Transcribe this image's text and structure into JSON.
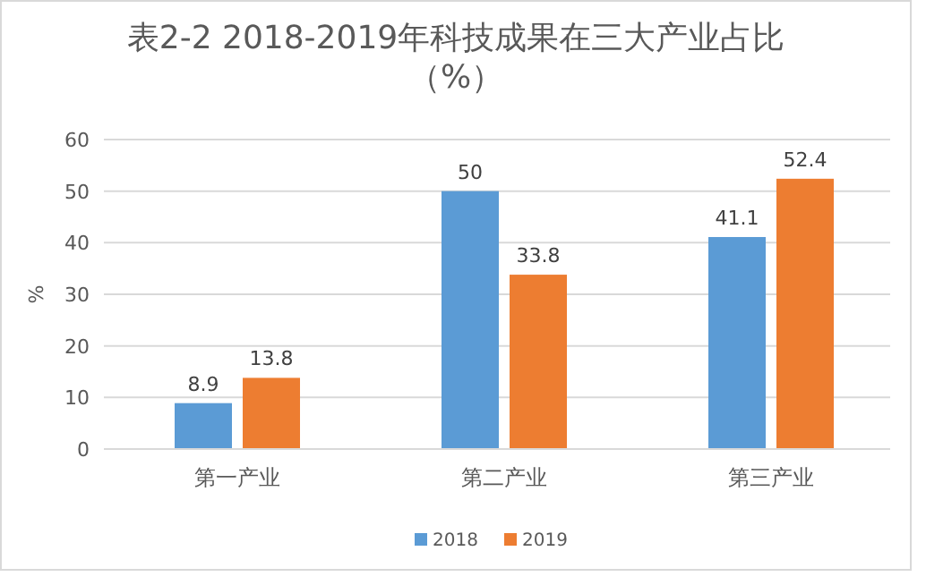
{
  "chart_data": {
    "type": "bar",
    "title": "表2-2 2018-2019年科技成果在三大产业占比",
    "subtitle": "（%）",
    "ylabel": "%",
    "categories": [
      "第一产业",
      "第二产业",
      "第三产业"
    ],
    "series": [
      {
        "name": "2018",
        "color": "#5b9bd5",
        "values": [
          8.9,
          50,
          41.1
        ]
      },
      {
        "name": "2019",
        "color": "#ed7d31",
        "values": [
          13.8,
          33.8,
          52.4
        ]
      }
    ],
    "ylim": [
      0,
      60
    ],
    "yticks": [
      0,
      10,
      20,
      30,
      40,
      50,
      60
    ],
    "grid": "y",
    "legend": "bottom",
    "data_labels": true
  }
}
